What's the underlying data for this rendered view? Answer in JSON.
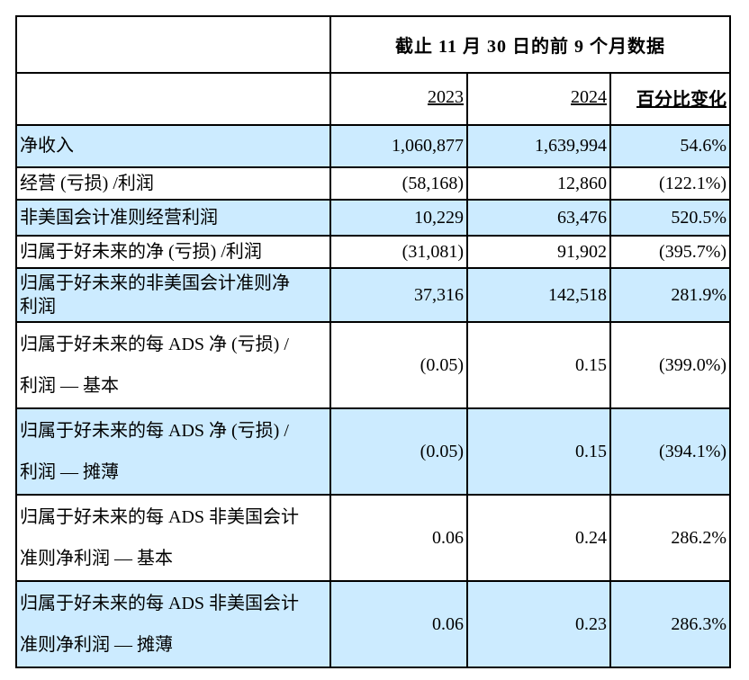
{
  "table": {
    "span_header": "截止 11 月 30 日的前 9 个月数据",
    "col_headers": {
      "y2023": "2023",
      "y2024": "2024",
      "change": "百分比变化"
    },
    "colors": {
      "shaded_row": "#CCEBFF",
      "border": "#000000",
      "text": "#000000"
    },
    "rows": [
      {
        "label": "净收入",
        "y2023": "1,060,877",
        "y2024": "1,639,994",
        "change": "54.6%"
      },
      {
        "label": "经营 (亏损) /利润",
        "y2023": "(58,168)",
        "y2024": "12,860",
        "change": "(122.1%)"
      },
      {
        "label": "非美国会计准则经营利润",
        "y2023": "10,229",
        "y2024": "63,476",
        "change": "520.5%"
      },
      {
        "label": "归属于好未来的净 (亏损) /利润",
        "y2023": "(31,081)",
        "y2024": "91,902",
        "change": "(395.7%)"
      },
      {
        "label": "归属于好未来的非美国会计准则净\n利润",
        "y2023": "37,316",
        "y2024": "142,518",
        "change": "281.9%"
      },
      {
        "label": "归属于好未来的每 ADS 净 (亏损) /\n利润 — 基本",
        "y2023": "(0.05)",
        "y2024": "0.15",
        "change": "(399.0%)"
      },
      {
        "label": "归属于好未来的每 ADS 净 (亏损) /\n利润 — 摊薄",
        "y2023": "(0.05)",
        "y2024": "0.15",
        "change": "(394.1%)"
      },
      {
        "label": "归属于好未来的每 ADS 非美国会计\n准则净利润 — 基本",
        "y2023": "0.06",
        "y2024": "0.24",
        "change": "286.2%"
      },
      {
        "label": "归属于好未来的每 ADS 非美国会计\n准则净利润 — 摊薄",
        "y2023": "0.06",
        "y2024": "0.23",
        "change": "286.3%"
      }
    ]
  }
}
